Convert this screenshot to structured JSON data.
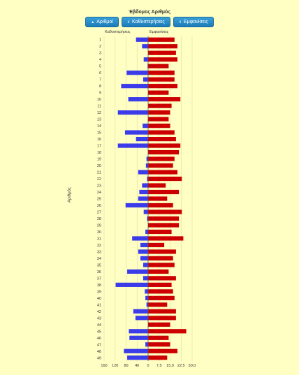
{
  "header": {
    "title": "Έβδομος Αριθμός"
  },
  "toolbar": {
    "btn_numbers": "Αριθμοί",
    "btn_delays": "Καθυστερήσεις",
    "btn_appearances": "Εμφανίσεις"
  },
  "columns": {
    "left": "Καθυστερήσεις",
    "right": "Εμφανίσεις"
  },
  "colors": {
    "delays": "#3b3bea",
    "appearances": "#cc0000",
    "background": "#ffffc4",
    "button": "#1b7bb8"
  },
  "chart_data": {
    "type": "bar",
    "orientation": "horizontal",
    "ylabel": "Αριθμός",
    "categories": [
      "1",
      "2",
      "3",
      "4",
      "5",
      "6",
      "7",
      "8",
      "9",
      "10",
      "11",
      "12",
      "13",
      "14",
      "15",
      "16",
      "17",
      "18",
      "19",
      "20",
      "21",
      "22",
      "23",
      "24",
      "25",
      "26",
      "27",
      "28",
      "29",
      "30",
      "31",
      "32",
      "33",
      "34",
      "35",
      "36",
      "37",
      "38",
      "39",
      "40",
      "41",
      "42",
      "43",
      "44",
      "45",
      "46",
      "47",
      "48",
      "49"
    ],
    "x_ticks_left": [
      "160",
      "120",
      "80",
      "40",
      "0"
    ],
    "x_ticks_right": [
      "0",
      "7,5",
      "15,0",
      "22,5",
      "30,0"
    ],
    "series": [
      {
        "name": "Καθυστερήσεις",
        "side": "left",
        "values": [
          44,
          22,
          0,
          16,
          2,
          78,
          18,
          98,
          0,
          72,
          0,
          110,
          0,
          20,
          84,
          44,
          110,
          0,
          6,
          8,
          36,
          4,
          22,
          32,
          36,
          82,
          16,
          4,
          0,
          10,
          58,
          28,
          36,
          28,
          18,
          76,
          18,
          118,
          12,
          10,
          6,
          54,
          46,
          0,
          70,
          68,
          10,
          88,
          76
        ]
      },
      {
        "name": "Εμφανίσεις",
        "side": "right",
        "values": [
          18,
          20,
          19,
          20,
          14,
          18,
          18,
          20,
          14,
          22,
          16,
          15,
          14,
          15,
          18,
          19,
          22,
          21,
          18,
          17,
          20,
          23,
          12,
          21,
          13,
          17,
          23,
          21,
          21,
          16,
          24,
          11,
          19,
          17,
          18,
          14,
          19,
          16,
          17,
          18,
          13,
          19,
          19,
          15,
          26,
          14,
          15,
          20,
          13
        ]
      }
    ],
    "xlim_left": [
      0,
      160
    ],
    "xlim_right": [
      0,
      30
    ]
  }
}
